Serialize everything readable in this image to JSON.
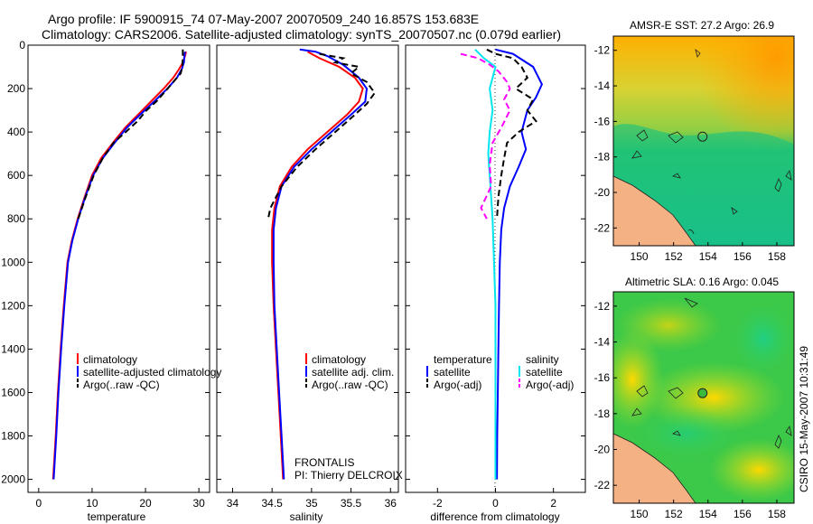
{
  "header": {
    "line1": "Argo profile: IF 5900915_74 07-May-2007 20070509_240 16.857S 153.683E",
    "line2": "Climatology: CARS2006. Satellite-adjusted climatology: synTS_20070507.nc (0.079d earlier)"
  },
  "side_stamp": "CSIRO 15-May-2007 10:31:49",
  "colors": {
    "climatology": "#ff0000",
    "satellite": "#0000ff",
    "argo": "#000000",
    "satellite_sal": "#00e5ee",
    "argo_sal": "#ff00ff",
    "land": "#f4b183"
  },
  "chart_data": [
    {
      "id": "temperature",
      "type": "line",
      "xlabel": "temperature",
      "ylabel": "",
      "xlim": [
        -2,
        32
      ],
      "ylim": [
        2060,
        0
      ],
      "xticks": [
        0,
        10,
        20,
        30
      ],
      "yticks": [
        0,
        200,
        400,
        600,
        800,
        1000,
        1200,
        1400,
        1600,
        1800,
        2000
      ],
      "legend": [
        "climatology",
        "satellite-adjusted climatology",
        "Argo(..raw -QC)"
      ],
      "series": [
        {
          "name": "climatology",
          "color": "#ff0000",
          "dash": false,
          "points": [
            [
              27.6,
              30
            ],
            [
              27.4,
              50
            ],
            [
              27.0,
              80
            ],
            [
              26.3,
              110
            ],
            [
              25.2,
              150
            ],
            [
              23.4,
              200
            ],
            [
              21.0,
              260
            ],
            [
              18.6,
              320
            ],
            [
              16.2,
              380
            ],
            [
              13.9,
              450
            ],
            [
              11.7,
              520
            ],
            [
              10.0,
              600
            ],
            [
              8.6,
              700
            ],
            [
              7.3,
              800
            ],
            [
              6.2,
              900
            ],
            [
              5.4,
              1000
            ],
            [
              4.7,
              1200
            ],
            [
              4.1,
              1400
            ],
            [
              3.6,
              1600
            ],
            [
              3.2,
              1800
            ],
            [
              2.7,
              2000
            ]
          ]
        },
        {
          "name": "satellite",
          "color": "#0000ff",
          "dash": false,
          "points": [
            [
              27.4,
              30
            ],
            [
              27.3,
              50
            ],
            [
              27.2,
              80
            ],
            [
              26.8,
              110
            ],
            [
              25.9,
              150
            ],
            [
              24.1,
              200
            ],
            [
              21.6,
              260
            ],
            [
              19.0,
              320
            ],
            [
              16.5,
              380
            ],
            [
              14.2,
              450
            ],
            [
              12.0,
              520
            ],
            [
              10.2,
              600
            ],
            [
              8.7,
              700
            ],
            [
              7.4,
              800
            ],
            [
              6.3,
              900
            ],
            [
              5.5,
              1000
            ],
            [
              4.8,
              1200
            ],
            [
              4.2,
              1400
            ],
            [
              3.7,
              1600
            ],
            [
              3.3,
              1800
            ],
            [
              2.8,
              2000
            ]
          ]
        },
        {
          "name": "Argo",
          "color": "#000000",
          "dash": true,
          "points": [
            [
              27.0,
              20
            ],
            [
              27.0,
              60
            ],
            [
              26.9,
              100
            ],
            [
              26.6,
              130
            ],
            [
              25.2,
              170
            ],
            [
              23.8,
              210
            ],
            [
              22.0,
              260
            ],
            [
              20.2,
              300
            ],
            [
              18.5,
              350
            ],
            [
              16.3,
              400
            ],
            [
              14.0,
              450
            ],
            [
              12.0,
              520
            ],
            [
              10.3,
              600
            ],
            [
              8.8,
              700
            ],
            [
              7.4,
              800
            ]
          ]
        }
      ]
    },
    {
      "id": "salinity",
      "type": "line",
      "xlabel": "salinity",
      "xlim": [
        33.8,
        36.1
      ],
      "ylim": [
        2060,
        0
      ],
      "xticks": [
        34,
        34.5,
        35,
        35.5,
        36
      ],
      "legend": [
        "climatology",
        "satellite adj. clim.",
        "Argo(..raw -QC)"
      ],
      "annotation": [
        "FRONTALIS",
        "PI: Thierry DELCROIX"
      ],
      "series": [
        {
          "name": "climatology",
          "color": "#ff0000",
          "dash": false,
          "points": [
            [
              34.95,
              30
            ],
            [
              35.1,
              60
            ],
            [
              35.35,
              100
            ],
            [
              35.55,
              150
            ],
            [
              35.65,
              200
            ],
            [
              35.6,
              260
            ],
            [
              35.45,
              320
            ],
            [
              35.2,
              400
            ],
            [
              34.95,
              480
            ],
            [
              34.75,
              560
            ],
            [
              34.6,
              650
            ],
            [
              34.53,
              750
            ],
            [
              34.5,
              850
            ],
            [
              34.5,
              1000
            ],
            [
              34.52,
              1200
            ],
            [
              34.55,
              1400
            ],
            [
              34.58,
              1600
            ],
            [
              34.61,
              1800
            ],
            [
              34.64,
              2000
            ]
          ]
        },
        {
          "name": "satellite",
          "color": "#0000ff",
          "dash": false,
          "points": [
            [
              34.85,
              20
            ],
            [
              35.05,
              30
            ],
            [
              35.2,
              50
            ],
            [
              35.4,
              90
            ],
            [
              35.6,
              150
            ],
            [
              35.7,
              200
            ],
            [
              35.68,
              260
            ],
            [
              35.5,
              320
            ],
            [
              35.25,
              400
            ],
            [
              35.0,
              480
            ],
            [
              34.78,
              560
            ],
            [
              34.62,
              650
            ],
            [
              34.55,
              750
            ],
            [
              34.52,
              850
            ],
            [
              34.52,
              1000
            ],
            [
              34.53,
              1200
            ],
            [
              34.56,
              1400
            ],
            [
              34.59,
              1600
            ],
            [
              34.62,
              1800
            ],
            [
              34.65,
              2000
            ]
          ]
        },
        {
          "name": "Argo",
          "color": "#000000",
          "dash": true,
          "points": [
            [
              35.1,
              40
            ],
            [
              35.4,
              60
            ],
            [
              35.3,
              80
            ],
            [
              35.6,
              100
            ],
            [
              35.5,
              130
            ],
            [
              35.7,
              170
            ],
            [
              35.8,
              220
            ],
            [
              35.7,
              270
            ],
            [
              35.55,
              320
            ],
            [
              35.3,
              400
            ],
            [
              35.05,
              480
            ],
            [
              34.82,
              560
            ],
            [
              34.62,
              650
            ],
            [
              34.48,
              750
            ],
            [
              34.45,
              800
            ]
          ]
        }
      ]
    },
    {
      "id": "difference",
      "type": "line",
      "xlabel": "difference from climatology",
      "xlim": [
        -3.1,
        3.1
      ],
      "ylim": [
        2060,
        0
      ],
      "xticks": [
        -2,
        0,
        2
      ],
      "legend": {
        "temperature": [
          "satellite",
          "Argo(-adj)"
        ],
        "salinity": [
          "satellite",
          "Argo(-adj)"
        ],
        "headers": [
          "temperature",
          "salinity"
        ]
      },
      "series": [
        {
          "name": "temperature satellite",
          "color": "#0000ff",
          "dash": false,
          "points": [
            [
              0.0,
              20
            ],
            [
              0.6,
              40
            ],
            [
              1.3,
              100
            ],
            [
              1.6,
              180
            ],
            [
              1.4,
              240
            ],
            [
              1.1,
              300
            ],
            [
              0.9,
              400
            ],
            [
              1.05,
              480
            ],
            [
              0.8,
              560
            ],
            [
              0.5,
              650
            ],
            [
              0.3,
              750
            ],
            [
              0.2,
              850
            ],
            [
              0.15,
              1000
            ],
            [
              0.12,
              1200
            ],
            [
              0.1,
              1400
            ],
            [
              0.08,
              1600
            ],
            [
              0.06,
              1800
            ],
            [
              0.05,
              2000
            ]
          ]
        },
        {
          "name": "temperature Argo",
          "color": "#000000",
          "dash": true,
          "points": [
            [
              -0.3,
              20
            ],
            [
              0.0,
              40
            ],
            [
              0.6,
              60
            ],
            [
              0.9,
              100
            ],
            [
              1.1,
              150
            ],
            [
              0.7,
              200
            ],
            [
              1.3,
              250
            ],
            [
              1.1,
              300
            ],
            [
              1.4,
              350
            ],
            [
              0.8,
              400
            ],
            [
              0.4,
              450
            ],
            [
              0.3,
              520
            ],
            [
              0.2,
              600
            ],
            [
              0.1,
              700
            ],
            [
              0.05,
              800
            ]
          ]
        },
        {
          "name": "salinity satellite",
          "color": "#00e5ee",
          "dash": false,
          "points": [
            [
              -0.7,
              20
            ],
            [
              -0.4,
              60
            ],
            [
              0.0,
              100
            ],
            [
              -0.2,
              200
            ],
            [
              -0.1,
              300
            ],
            [
              -0.2,
              400
            ],
            [
              -0.25,
              500
            ],
            [
              -0.2,
              600
            ],
            [
              -0.15,
              700
            ],
            [
              -0.1,
              800
            ],
            [
              -0.05,
              1000
            ],
            [
              0.0,
              1200
            ],
            [
              0.0,
              1500
            ],
            [
              0.0,
              2000
            ]
          ]
        },
        {
          "name": "salinity Argo",
          "color": "#ff00ff",
          "dash": true,
          "points": [
            [
              -1.2,
              40
            ],
            [
              -0.6,
              60
            ],
            [
              -0.2,
              90
            ],
            [
              0.1,
              120
            ],
            [
              0.4,
              170
            ],
            [
              0.5,
              200
            ],
            [
              0.3,
              250
            ],
            [
              0.5,
              300
            ],
            [
              0.2,
              380
            ],
            [
              -0.1,
              450
            ],
            [
              -0.2,
              550
            ],
            [
              -0.15,
              650
            ],
            [
              -0.5,
              750
            ],
            [
              -0.3,
              800
            ]
          ]
        }
      ]
    },
    {
      "id": "sst-map",
      "type": "heatmap",
      "title": "AMSR-E SST: 27.2 Argo: 26.9",
      "xticks": [
        150,
        152,
        154,
        156,
        158
      ],
      "yticks": [
        -12,
        -14,
        -16,
        -18,
        -20,
        -22
      ],
      "xlim": [
        148.5,
        159
      ],
      "ylim": [
        -11.2,
        -23
      ],
      "argo_position": [
        153.683,
        -16.857
      ]
    },
    {
      "id": "sla-map",
      "type": "heatmap",
      "title": "Altimetric SLA: 0.16 Argo: 0.045",
      "xticks": [
        150,
        152,
        154,
        156,
        158
      ],
      "yticks": [
        -12,
        -14,
        -16,
        -18,
        -20,
        -22
      ],
      "xlim": [
        148.5,
        159
      ],
      "ylim": [
        -11.2,
        -23
      ],
      "argo_position": [
        153.683,
        -16.857
      ]
    }
  ]
}
